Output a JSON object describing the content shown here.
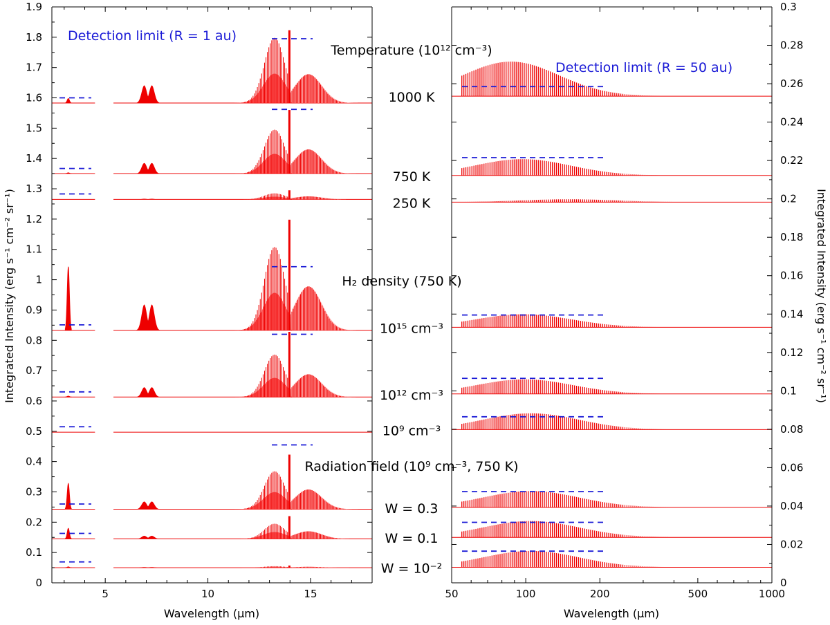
{
  "chart_data": {
    "type": "line",
    "panels": [
      {
        "id": "left",
        "xlabel": "Wavelength (μm)",
        "ylabel": "Integrated Intensity (erg s⁻¹ cm⁻² sr⁻¹)",
        "xlim": [
          2.4,
          18
        ],
        "ylim": [
          0,
          1.9
        ],
        "x_scale": "linear",
        "xticks": [
          5,
          10,
          15
        ],
        "yticks": [
          0,
          0.1,
          0.2,
          0.3,
          0.4,
          0.5,
          0.6,
          0.7,
          0.8,
          0.9,
          1,
          1.1,
          1.2,
          1.3,
          1.4,
          1.5,
          1.6,
          1.7,
          1.8,
          1.9
        ],
        "ytick_labels": [
          "0",
          "0.1",
          "0.2",
          "0.3",
          "0.4",
          "0.5",
          "0.6",
          "0.7",
          "0.8",
          "0.9",
          "1",
          "1.1",
          "1.2",
          "1.3",
          "1.4",
          "1.5",
          "1.6",
          "1.7",
          "1.8",
          "1.9"
        ],
        "axis_break": [
          4.5,
          5.4
        ],
        "detection_label": "Detection limit (R = 1 au)"
      },
      {
        "id": "right",
        "xlabel": "Wavelength (μm)",
        "ylabel": "Integrated Intensity (erg s⁻¹ cm⁻² sr⁻¹)",
        "xlim": [
          50,
          1000
        ],
        "ylim": [
          0,
          0.3
        ],
        "x_scale": "log",
        "xticks": [
          50,
          100,
          200,
          500,
          1000
        ],
        "yticks": [
          0,
          0.02,
          0.04,
          0.06,
          0.08,
          0.1,
          0.12,
          0.14,
          0.16,
          0.18,
          0.2,
          0.22,
          0.24,
          0.26,
          0.28,
          0.3
        ],
        "ytick_labels": [
          "0",
          "0.02",
          "0.04",
          "0.06",
          "0.08",
          "0.1",
          "0.12",
          "0.14",
          "0.16",
          "0.18",
          "0.2",
          "0.22",
          "0.24",
          "0.26",
          "0.28",
          "0.3"
        ],
        "detection_label": "Detection limit (R = 50 au)"
      }
    ],
    "group_titles": [
      {
        "text": "Temperature (10¹² cm⁻³)",
        "y_right": 0.279
      },
      {
        "text": "H₂ density (750 K)",
        "y_right": 0.159
      },
      {
        "text": "Radiation field (10⁹ cm⁻³, 750 K)",
        "y_right": 0.062
      }
    ],
    "series": [
      {
        "name": "1000 K",
        "baseline_left": 1.583,
        "baseline_right": 0.2535,
        "left": {
          "band3": 0.015,
          "band7": 0.058,
          "q_branch": 0.24,
          "lobe_p": 0.215,
          "lobe_r": 0.095,
          "q_spike": 0.24,
          "det": 1.6,
          "det2": 1.795
        },
        "right": {
          "peak": 0.018,
          "peak_wl": 87,
          "det": 0.2585
        }
      },
      {
        "name": "750 K",
        "baseline_left": 1.35,
        "baseline_right": 0.2122,
        "left": {
          "band3": 0.003,
          "band7": 0.035,
          "q_branch": 0.21,
          "lobe_p": 0.145,
          "lobe_r": 0.08,
          "q_spike": 0.21,
          "det": 1.367,
          "det2": 1.562
        },
        "right": {
          "peak": 0.0085,
          "peak_wl": 97,
          "det": 0.2215
        }
      },
      {
        "name": "250 K",
        "baseline_left": 1.265,
        "baseline_right": 0.1983,
        "left": {
          "band3": 0.0,
          "band7": 0.002,
          "q_branch": 0.03,
          "lobe_p": 0.02,
          "lobe_r": 0.01,
          "q_spike": 0.03,
          "det": 1.283
        },
        "right": {
          "peak": 0.0015,
          "peak_wl": 150,
          "det": null
        }
      },
      {
        "name": "10¹⁵ cm⁻³",
        "baseline_left": 0.833,
        "baseline_right": 0.1331,
        "left": {
          "band3": 0.21,
          "band7": 0.085,
          "q_branch": 0.365,
          "lobe_p": 0.275,
          "lobe_r": 0.145,
          "q_spike": 0.365,
          "det": 0.851,
          "det2": 1.043
        },
        "right": {
          "peak": 0.0068,
          "peak_wl": 98,
          "det": 0.1395
        }
      },
      {
        "name": "10¹² cm⁻³",
        "baseline_left": 0.613,
        "baseline_right": 0.0984,
        "left": {
          "band3": 0.003,
          "band7": 0.032,
          "q_branch": 0.215,
          "lobe_p": 0.14,
          "lobe_r": 0.075,
          "q_spike": 0.215,
          "det": 0.63,
          "det2": 0.82
        },
        "right": {
          "peak": 0.0076,
          "peak_wl": 99,
          "det": 0.1065
        }
      },
      {
        "name": "10⁹ cm⁻³",
        "baseline_left": 0.497,
        "baseline_right": 0.0798,
        "left": {
          "band3": 0.0,
          "band7": 0.0,
          "q_branch": 0.0,
          "lobe_p": 0.0,
          "lobe_r": 0.0,
          "q_spike": 0.0,
          "det": 0.515
        },
        "right": {
          "peak": 0.0085,
          "peak_wl": 105,
          "det": 0.0865
        }
      },
      {
        "name": "W = 0.3",
        "baseline_left": 0.243,
        "baseline_right": 0.0393,
        "left": {
          "band3": 0.085,
          "band7": 0.025,
          "q_branch": 0.18,
          "lobe_p": 0.125,
          "lobe_r": 0.065,
          "q_spike": 0.18,
          "det": 0.26,
          "det2": 0.455
        },
        "right": {
          "peak": 0.0085,
          "peak_wl": 105,
          "det": 0.0475
        }
      },
      {
        "name": "W = 0.1",
        "baseline_left": 0.145,
        "baseline_right": 0.0237,
        "left": {
          "band3": 0.035,
          "band7": 0.01,
          "q_branch": 0.075,
          "lobe_p": 0.05,
          "lobe_r": 0.025,
          "q_spike": 0.075,
          "det": 0.163
        },
        "right": {
          "peak": 0.0085,
          "peak_wl": 105,
          "det": 0.0315
        }
      },
      {
        "name": "W = 10⁻²",
        "baseline_left": 0.05,
        "baseline_right": 0.0081,
        "left": {
          "band3": 0.003,
          "band7": 0.002,
          "q_branch": 0.007,
          "lobe_p": 0.005,
          "lobe_r": 0.003,
          "q_spike": 0.007,
          "det": 0.069
        },
        "right": {
          "peak": 0.0085,
          "peak_wl": 105,
          "det": 0.0165
        }
      }
    ],
    "colors": {
      "line": "#ee0000",
      "fill": "#ff4d4d",
      "fill_light": "#ff9a9a",
      "detection": "#1a1ad6"
    },
    "grid": false,
    "legend": "none"
  }
}
